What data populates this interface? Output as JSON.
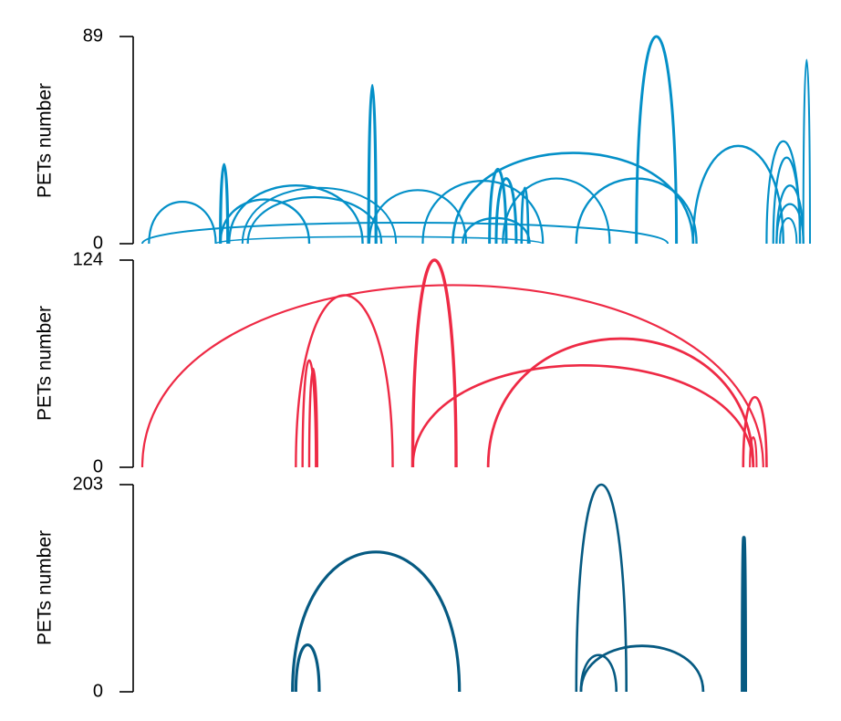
{
  "chart_data": [
    {
      "type": "arc",
      "ylabel": "PETs number",
      "ylim": [
        0,
        89
      ],
      "y_ticks": [
        "0",
        "89"
      ],
      "color": "#0490c8",
      "arcs": [
        {
          "start": 0.01,
          "end": 0.11,
          "height": 18,
          "weight": 2.2
        },
        {
          "start": 0.117,
          "end": 0.128,
          "height": 34,
          "weight": 3.2
        },
        {
          "start": 0.117,
          "end": 0.25,
          "height": 19,
          "weight": 2.4
        },
        {
          "start": 0.13,
          "end": 0.33,
          "height": 25,
          "weight": 2.4
        },
        {
          "start": 0.15,
          "end": 0.38,
          "height": 24,
          "weight": 2.0
        },
        {
          "start": 0.158,
          "end": 0.358,
          "height": 20,
          "weight": 2.2
        },
        {
          "start": 0.339,
          "end": 0.35,
          "height": 68,
          "weight": 3.2
        },
        {
          "start": 0.34,
          "end": 0.485,
          "height": 23,
          "weight": 2.2
        },
        {
          "start": 0.0,
          "end": 0.787,
          "height": 9,
          "weight": 2.0
        },
        {
          "start": 0.11,
          "end": 0.6,
          "height": 3,
          "weight": 1.6
        },
        {
          "start": 0.42,
          "end": 0.6,
          "height": 27,
          "weight": 2.2
        },
        {
          "start": 0.465,
          "end": 0.825,
          "height": 39,
          "weight": 2.6
        },
        {
          "start": 0.48,
          "end": 0.58,
          "height": 11,
          "weight": 2.4
        },
        {
          "start": 0.52,
          "end": 0.545,
          "height": 32,
          "weight": 3.0
        },
        {
          "start": 0.53,
          "end": 0.56,
          "height": 28,
          "weight": 3.0
        },
        {
          "start": 0.54,
          "end": 0.7,
          "height": 28,
          "weight": 2.2
        },
        {
          "start": 0.568,
          "end": 0.578,
          "height": 24,
          "weight": 2.6
        },
        {
          "start": 0.65,
          "end": 0.83,
          "height": 28,
          "weight": 2.4
        },
        {
          "start": 0.74,
          "end": 0.8,
          "height": 89,
          "weight": 3.0
        },
        {
          "start": 0.825,
          "end": 0.96,
          "height": 42,
          "weight": 2.4
        },
        {
          "start": 0.935,
          "end": 0.985,
          "height": 44,
          "weight": 2.2
        },
        {
          "start": 0.945,
          "end": 0.985,
          "height": 37,
          "weight": 2.2
        },
        {
          "start": 0.95,
          "end": 0.99,
          "height": 25,
          "weight": 2.2
        },
        {
          "start": 0.95,
          "end": 0.99,
          "height": 17,
          "weight": 2.2
        },
        {
          "start": 0.955,
          "end": 0.98,
          "height": 11,
          "weight": 2.0
        },
        {
          "start": 0.99,
          "end": 1.0,
          "height": 79,
          "weight": 2.0
        }
      ]
    },
    {
      "type": "arc",
      "ylabel": "PETs number",
      "ylim": [
        0,
        124
      ],
      "y_ticks": [
        "0",
        "124"
      ],
      "color": "#ee2a45",
      "arcs": [
        {
          "start": 0.0,
          "end": 0.93,
          "height": 109,
          "weight": 2.2
        },
        {
          "start": 0.23,
          "end": 0.375,
          "height": 103,
          "weight": 2.4
        },
        {
          "start": 0.24,
          "end": 0.26,
          "height": 64,
          "weight": 2.4
        },
        {
          "start": 0.25,
          "end": 0.262,
          "height": 59,
          "weight": 2.4
        },
        {
          "start": 0.405,
          "end": 0.47,
          "height": 124,
          "weight": 3.4
        },
        {
          "start": 0.405,
          "end": 0.915,
          "height": 61,
          "weight": 2.6
        },
        {
          "start": 0.518,
          "end": 0.915,
          "height": 77,
          "weight": 2.8
        },
        {
          "start": 0.9,
          "end": 0.935,
          "height": 42,
          "weight": 2.6
        },
        {
          "start": 0.91,
          "end": 0.92,
          "height": 18,
          "weight": 2.0
        }
      ]
    },
    {
      "type": "arc",
      "ylabel": "PETs number",
      "ylim": [
        0,
        203
      ],
      "y_ticks": [
        "0",
        "203"
      ],
      "color": "#065a82",
      "arcs": [
        {
          "start": 0.225,
          "end": 0.475,
          "height": 137,
          "weight": 3.2
        },
        {
          "start": 0.23,
          "end": 0.265,
          "height": 46,
          "weight": 3.2
        },
        {
          "start": 0.65,
          "end": 0.725,
          "height": 203,
          "weight": 2.6
        },
        {
          "start": 0.657,
          "end": 0.71,
          "height": 36,
          "weight": 2.6
        },
        {
          "start": 0.657,
          "end": 0.84,
          "height": 45,
          "weight": 2.8
        },
        {
          "start": 0.899,
          "end": 0.903,
          "height": 151,
          "weight": 4.0
        }
      ]
    }
  ]
}
